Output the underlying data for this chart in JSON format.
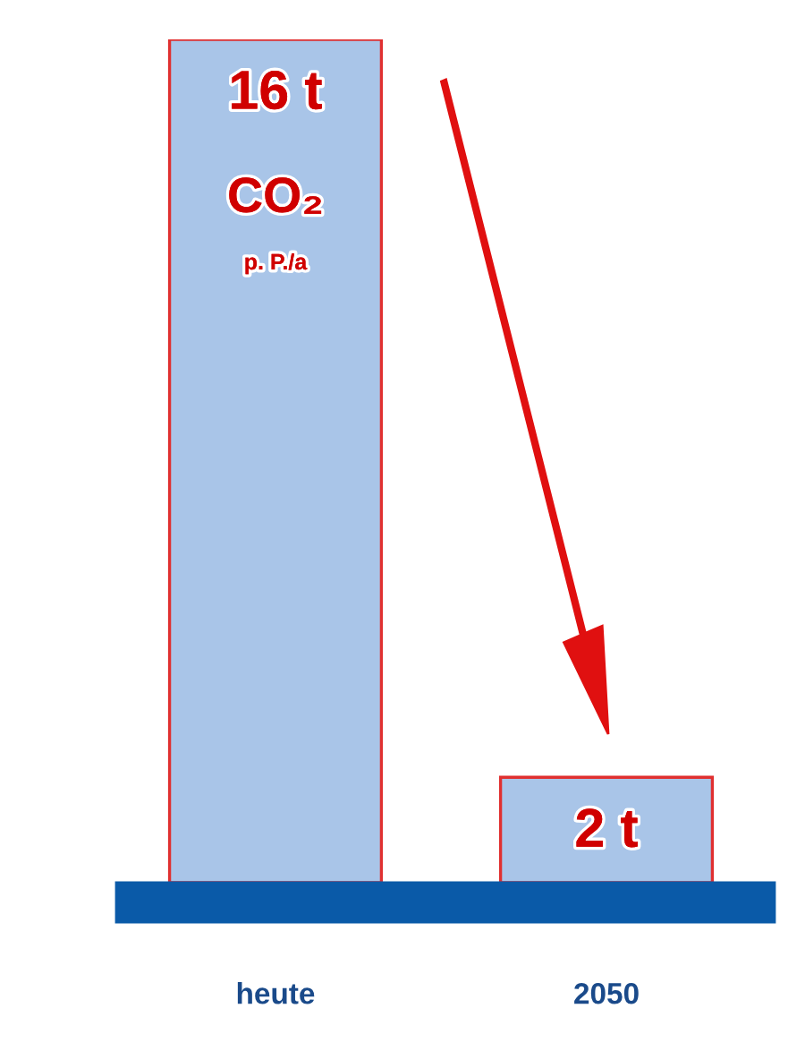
{
  "chart_data": {
    "type": "bar",
    "categories": [
      "heute",
      "2050"
    ],
    "values": [
      16,
      2
    ],
    "value_labels": [
      "16 t",
      "2 t"
    ],
    "color": "#a9c5e8",
    "annotations": [
      "CO₂",
      "p. P./a"
    ]
  }
}
